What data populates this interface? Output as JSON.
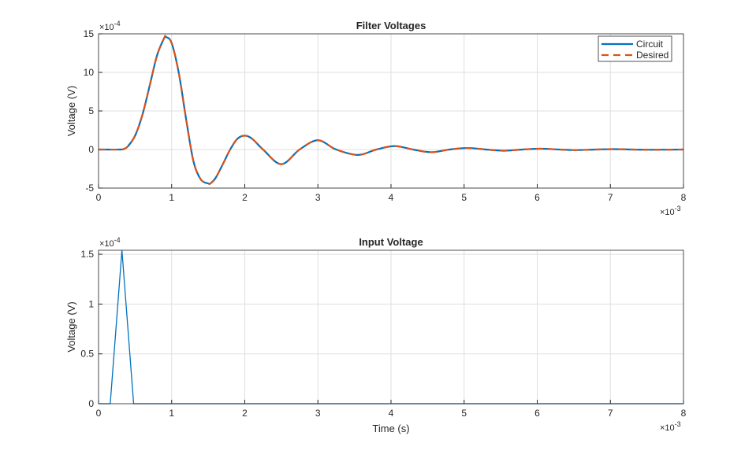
{
  "chart_data": [
    {
      "type": "line",
      "title": "Filter Voltages",
      "xlabel": "",
      "ylabel": "Voltage (V)",
      "x_exponent": "-3",
      "y_exponent": "-4",
      "xlim": [
        0,
        8
      ],
      "ylim": [
        -5,
        15
      ],
      "xticks": [
        "0",
        "1",
        "2",
        "3",
        "4",
        "5",
        "6",
        "7",
        "8"
      ],
      "yticks": [
        "-5",
        "0",
        "5",
        "10",
        "15"
      ],
      "grid": true,
      "legend": "top-right",
      "series": [
        {
          "name": "Circuit",
          "color": "#0072BD",
          "style": "solid",
          "x": [
            0,
            0.3,
            0.35,
            0.4,
            0.5,
            0.6,
            0.7,
            0.8,
            0.9,
            0.92,
            1.0,
            1.1,
            1.2,
            1.3,
            1.4,
            1.5,
            1.53,
            1.6,
            1.7,
            1.8,
            1.9,
            2.0,
            2.1,
            2.25,
            2.5,
            2.75,
            3.0,
            3.25,
            3.55,
            3.8,
            4.05,
            4.3,
            4.55,
            4.8,
            5.05,
            5.3,
            5.55,
            5.8,
            6.05,
            6.3,
            6.55,
            6.8,
            7.05,
            7.3,
            7.55,
            8.0
          ],
          "y": [
            0,
            0,
            0.1,
            0.4,
            1.8,
            4.5,
            8.3,
            12.2,
            14.5,
            14.6,
            13.8,
            9.8,
            3.8,
            -1.6,
            -3.9,
            -4.4,
            -4.4,
            -3.7,
            -1.9,
            0,
            1.4,
            1.8,
            1.4,
            0,
            -1.9,
            0,
            1.2,
            0,
            -0.7,
            0,
            0.45,
            0,
            -0.35,
            0,
            0.2,
            0,
            -0.15,
            0,
            0.1,
            0,
            -0.07,
            0,
            0.05,
            0,
            -0.03,
            0
          ]
        },
        {
          "name": "Desired",
          "color": "#D95319",
          "style": "dashed",
          "x": [
            0,
            0.3,
            0.35,
            0.4,
            0.5,
            0.6,
            0.7,
            0.8,
            0.9,
            0.92,
            1.0,
            1.1,
            1.2,
            1.3,
            1.4,
            1.5,
            1.53,
            1.6,
            1.7,
            1.8,
            1.9,
            2.0,
            2.1,
            2.25,
            2.5,
            2.75,
            3.0,
            3.25,
            3.55,
            3.8,
            4.05,
            4.3,
            4.55,
            4.8,
            5.05,
            5.3,
            5.55,
            5.8,
            6.05,
            6.3,
            6.55,
            6.8,
            7.05,
            7.3,
            7.55,
            8.0
          ],
          "y": [
            0,
            0,
            0.1,
            0.4,
            1.8,
            4.5,
            8.3,
            12.2,
            14.5,
            14.6,
            13.8,
            9.8,
            3.8,
            -1.6,
            -3.9,
            -4.4,
            -4.4,
            -3.7,
            -1.9,
            0,
            1.4,
            1.8,
            1.4,
            0,
            -1.9,
            0,
            1.2,
            0,
            -0.7,
            0,
            0.45,
            0,
            -0.35,
            0,
            0.2,
            0,
            -0.15,
            0,
            0.1,
            0,
            -0.07,
            0,
            0.05,
            0,
            -0.03,
            0
          ]
        }
      ]
    },
    {
      "type": "line",
      "title": "Input Voltage",
      "xlabel": "Time (s)",
      "ylabel": "Voltage (V)",
      "x_exponent": "-3",
      "y_exponent": "-4",
      "xlim": [
        0,
        8
      ],
      "ylim": [
        0,
        1.54
      ],
      "xticks": [
        "0",
        "1",
        "2",
        "3",
        "4",
        "5",
        "6",
        "7",
        "8"
      ],
      "yticks": [
        "0",
        "0.5",
        "1",
        "1.5"
      ],
      "grid": true,
      "series": [
        {
          "color": "#0072BD",
          "style": "solid",
          "x": [
            0,
            0.16,
            0.32,
            0.48,
            8
          ],
          "y": [
            0,
            0,
            1.54,
            0,
            0
          ]
        }
      ]
    }
  ]
}
